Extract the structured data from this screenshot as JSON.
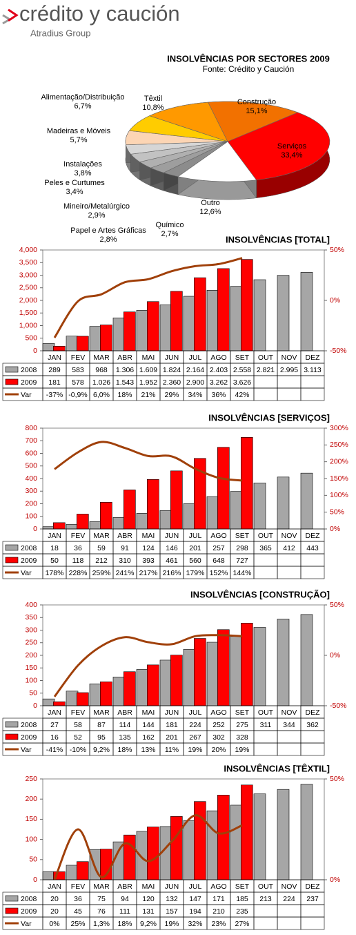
{
  "header": {
    "brand": "crédito y caución",
    "group": "Atradius Group"
  },
  "chart_data": [
    {
      "type": "pie",
      "title": "INSOLVÊNCIAS POR SECTORES 2009",
      "subtitle": "Fonte: Crédito y Caución",
      "categories": [
        "Têxtil",
        "Construção",
        "Serviços",
        "Outro",
        "Químico",
        "Papel e Artes Gráficas",
        "Mineiro/Metalúrgico",
        "Peles e Curtumes",
        "Instalações",
        "Madeiras e Móveis",
        "Alimentação/Distribuição"
      ],
      "values": [
        10.8,
        15.1,
        33.4,
        12.6,
        2.7,
        2.8,
        2.9,
        3.4,
        3.8,
        5.7,
        6.7
      ],
      "value_labels": [
        "10,8%",
        "15,1%",
        "33,4%",
        "12,6%",
        "2,7%",
        "2,8%",
        "2,9%",
        "3,4%",
        "3,8%",
        "5,7%",
        "6,7%"
      ],
      "colors": [
        "#ff9900",
        "#f27100",
        "#ff0000",
        "#ffffff",
        "#8c8c8c",
        "#9e9e9e",
        "#b0b0b0",
        "#c2c2c2",
        "#d6d6d6",
        "#fcd5b4",
        "#ffcc00"
      ]
    },
    {
      "type": "combo",
      "title": "INSOLVÊNCIAS [TOTAL]",
      "categories": [
        "JAN",
        "FEV",
        "MAR",
        "ABR",
        "MAI",
        "JUN",
        "JUL",
        "AGO",
        "SET",
        "OUT",
        "NOV",
        "DEZ"
      ],
      "series": [
        {
          "name": "2008",
          "color": "#a6a6a6",
          "values": [
            289,
            583,
            968,
            1306,
            1609,
            1824,
            2164,
            2403,
            2558,
            2821,
            2995,
            3113
          ],
          "value_labels": [
            "289",
            "583",
            "968",
            "1.306",
            "1.609",
            "1.824",
            "2.164",
            "2.403",
            "2.558",
            "2.821",
            "2.995",
            "3.113"
          ]
        },
        {
          "name": "2009",
          "color": "#ff0000",
          "values": [
            181,
            578,
            1026,
            1543,
            1952,
            2360,
            2900,
            3262,
            3626,
            null,
            null,
            null
          ],
          "value_labels": [
            "181",
            "578",
            "1.026",
            "1.543",
            "1.952",
            "2.360",
            "2.900",
            "3.262",
            "3.626",
            null,
            null,
            null
          ]
        },
        {
          "name": "Var",
          "color": "#a0400a",
          "axis": "y2",
          "values": [
            -37,
            -0.9,
            6.0,
            18,
            21,
            29,
            34,
            36,
            42,
            null,
            null,
            null
          ],
          "value_labels": [
            "-37%",
            "-0,9%",
            "6,0%",
            "18%",
            "21%",
            "29%",
            "34%",
            "36%",
            "42%",
            null,
            null,
            null
          ]
        }
      ],
      "ylim": [
        0,
        4000
      ],
      "yticks": [
        0,
        500,
        {
          "value": 1000,
          "label": "1,000"
        },
        {
          "value": 1500,
          "label": "1,500"
        },
        {
          "value": 2000,
          "label": "2,000"
        },
        {
          "value": 2500,
          "label": "2,500"
        },
        {
          "value": 3000,
          "label": "3,000"
        },
        {
          "value": 3500,
          "label": "3,500"
        },
        {
          "value": 4000,
          "label": "4,000"
        }
      ],
      "y2lim": [
        -50,
        50
      ],
      "y2ticks": [
        {
          "value": -50,
          "label": "-50%"
        },
        {
          "value": 0,
          "label": "0%"
        },
        {
          "value": 50,
          "label": "50%"
        }
      ]
    },
    {
      "type": "combo",
      "title": "INSOLVÊNCIAS [SERVIÇOS]",
      "categories": [
        "JAN",
        "FEV",
        "MAR",
        "ABR",
        "MAI",
        "JUN",
        "JUL",
        "AGO",
        "SET",
        "OUT",
        "NOV",
        "DEZ"
      ],
      "series": [
        {
          "name": "2008",
          "color": "#a6a6a6",
          "values": [
            18,
            36,
            59,
            91,
            124,
            146,
            201,
            257,
            298,
            365,
            412,
            443
          ]
        },
        {
          "name": "2009",
          "color": "#ff0000",
          "values": [
            50,
            118,
            212,
            310,
            393,
            461,
            560,
            648,
            727,
            null,
            null,
            null
          ]
        },
        {
          "name": "Var",
          "color": "#a0400a",
          "axis": "y2",
          "values": [
            178,
            228,
            259,
            241,
            217,
            216,
            179,
            152,
            144,
            null,
            null,
            null
          ],
          "value_labels": [
            "178%",
            "228%",
            "259%",
            "241%",
            "217%",
            "216%",
            "179%",
            "152%",
            "144%",
            null,
            null,
            null
          ]
        }
      ],
      "ylim": [
        0,
        800
      ],
      "yticks": [
        0,
        100,
        200,
        300,
        400,
        500,
        600,
        700,
        800
      ],
      "y2lim": [
        0,
        300
      ],
      "y2ticks": [
        {
          "value": 0,
          "label": "0%"
        },
        {
          "value": 50,
          "label": "50%"
        },
        {
          "value": 100,
          "label": "100%"
        },
        {
          "value": 150,
          "label": "150%"
        },
        {
          "value": 200,
          "label": "200%"
        },
        {
          "value": 250,
          "label": "250%"
        },
        {
          "value": 300,
          "label": "300%"
        }
      ]
    },
    {
      "type": "combo",
      "title": "INSOLVÊNCIAS [CONSTRUÇÃO]",
      "categories": [
        "JAN",
        "FEV",
        "MAR",
        "ABR",
        "MAI",
        "JUN",
        "JUL",
        "AGO",
        "SET",
        "OUT",
        "NOV",
        "DEZ"
      ],
      "series": [
        {
          "name": "2008",
          "color": "#a6a6a6",
          "values": [
            27,
            58,
            87,
            114,
            144,
            181,
            224,
            252,
            275,
            311,
            344,
            362
          ]
        },
        {
          "name": "2009",
          "color": "#ff0000",
          "values": [
            16,
            52,
            95,
            135,
            162,
            201,
            267,
            302,
            328,
            null,
            null,
            null
          ]
        },
        {
          "name": "Var",
          "color": "#a0400a",
          "axis": "y2",
          "values": [
            -41,
            -10,
            9.2,
            18,
            13,
            11,
            19,
            20,
            19,
            null,
            null,
            null
          ],
          "value_labels": [
            "-41%",
            "-10%",
            "9,2%",
            "18%",
            "13%",
            "11%",
            "19%",
            "20%",
            "19%",
            null,
            null,
            null
          ]
        }
      ],
      "ylim": [
        0,
        400
      ],
      "yticks": [
        0,
        50,
        100,
        150,
        200,
        250,
        300,
        350,
        400
      ],
      "y2lim": [
        -50,
        50
      ],
      "y2ticks": [
        {
          "value": -50,
          "label": "-50%"
        },
        {
          "value": 0,
          "label": "0%"
        },
        {
          "value": 50,
          "label": "50%"
        }
      ]
    },
    {
      "type": "combo",
      "title": "INSOLVÊNCIAS [TÊXTIL]",
      "categories": [
        "JAN",
        "FEV",
        "MAR",
        "ABR",
        "MAI",
        "JUN",
        "JUL",
        "AGO",
        "SET",
        "OUT",
        "NOV",
        "DEZ"
      ],
      "series": [
        {
          "name": "2008",
          "color": "#a6a6a6",
          "values": [
            20,
            36,
            75,
            94,
            120,
            132,
            147,
            171,
            185,
            213,
            224,
            237
          ]
        },
        {
          "name": "2009",
          "color": "#ff0000",
          "values": [
            20,
            45,
            76,
            111,
            131,
            157,
            194,
            210,
            235,
            null,
            null,
            null
          ]
        },
        {
          "name": "Var",
          "color": "#a0400a",
          "axis": "y2",
          "values": [
            0,
            25,
            1.3,
            18,
            9.2,
            19,
            32,
            23,
            27,
            null,
            null,
            null
          ],
          "value_labels": [
            "0%",
            "25%",
            "1,3%",
            "18%",
            "9,2%",
            "19%",
            "32%",
            "23%",
            "27%",
            null,
            null,
            null
          ]
        }
      ],
      "ylim": [
        0,
        250
      ],
      "yticks": [
        0,
        50,
        100,
        150,
        200,
        250
      ],
      "y2lim": [
        0,
        50
      ],
      "y2ticks": [
        {
          "value": 0,
          "label": "0%"
        },
        {
          "value": 50,
          "label": "50%"
        }
      ]
    }
  ]
}
